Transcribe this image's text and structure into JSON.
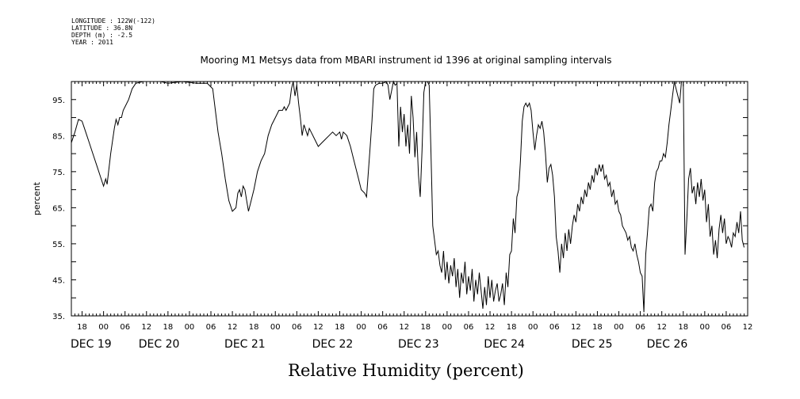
{
  "header": {
    "meta_lines": [
      "LONGITUDE : 122W(-122)",
      "LATITUDE : 36.8N",
      "DEPTH (m) : -2.5",
      "YEAR : 2011"
    ]
  },
  "chart_data": {
    "type": "line",
    "title": "Mooring M1 Metsys data from MBARI instrument id 1396 at original sampling intervals",
    "xlabel": "Relative Humidity (percent)",
    "ylabel": "percent",
    "ylim": [
      35,
      100
    ],
    "yticks": [
      35,
      45,
      55,
      65,
      75,
      85,
      95
    ],
    "yticklabels": [
      "35.",
      "45.",
      "55.",
      "65.",
      "75.",
      "85.",
      "95."
    ],
    "xlim": [
      15,
      204
    ],
    "x_unit": "hours since Dec 19 00:00",
    "xtick_hour_labels": [
      {
        "x": 18,
        "label": "18"
      },
      {
        "x": 24,
        "label": "00"
      },
      {
        "x": 30,
        "label": "06"
      },
      {
        "x": 36,
        "label": "12"
      },
      {
        "x": 42,
        "label": "18"
      },
      {
        "x": 48,
        "label": "00"
      },
      {
        "x": 54,
        "label": "06"
      },
      {
        "x": 60,
        "label": "12"
      },
      {
        "x": 66,
        "label": "18"
      },
      {
        "x": 72,
        "label": "00"
      },
      {
        "x": 78,
        "label": "06"
      },
      {
        "x": 84,
        "label": "12"
      },
      {
        "x": 90,
        "label": "18"
      },
      {
        "x": 96,
        "label": "00"
      },
      {
        "x": 102,
        "label": "06"
      },
      {
        "x": 108,
        "label": "12"
      },
      {
        "x": 114,
        "label": "18"
      },
      {
        "x": 120,
        "label": "00"
      },
      {
        "x": 126,
        "label": "06"
      },
      {
        "x": 132,
        "label": "12"
      },
      {
        "x": 138,
        "label": "18"
      },
      {
        "x": 144,
        "label": "00"
      },
      {
        "x": 150,
        "label": "06"
      },
      {
        "x": 156,
        "label": "12"
      },
      {
        "x": 162,
        "label": "18"
      },
      {
        "x": 168,
        "label": "00"
      },
      {
        "x": 174,
        "label": "06"
      },
      {
        "x": 180,
        "label": "12"
      },
      {
        "x": 186,
        "label": "18"
      },
      {
        "x": 192,
        "label": "00"
      },
      {
        "x": 198,
        "label": "06"
      },
      {
        "x": 204,
        "label": "12"
      }
    ],
    "day_labels": [
      {
        "x": 20.5,
        "label": "DEC 19"
      },
      {
        "x": 39.5,
        "label": "DEC 20"
      },
      {
        "x": 63.5,
        "label": "DEC 21"
      },
      {
        "x": 88,
        "label": "DEC 22"
      },
      {
        "x": 112,
        "label": "DEC 23"
      },
      {
        "x": 136,
        "label": "DEC 24"
      },
      {
        "x": 160.5,
        "label": "DEC 25"
      },
      {
        "x": 181.5,
        "label": "DEC 26"
      }
    ],
    "grid": false,
    "series": [
      {
        "color": "#000000",
        "points": [
          [
            15,
            83
          ],
          [
            16,
            86
          ],
          [
            17,
            89.5
          ],
          [
            18,
            89
          ],
          [
            19,
            86
          ],
          [
            20,
            83
          ],
          [
            21,
            80
          ],
          [
            22,
            77
          ],
          [
            23,
            74
          ],
          [
            24,
            71
          ],
          [
            24.6,
            73
          ],
          [
            25,
            71.5
          ],
          [
            26,
            80
          ],
          [
            27,
            87
          ],
          [
            27.5,
            89.5
          ],
          [
            28,
            88
          ],
          [
            28.5,
            90
          ],
          [
            29,
            90
          ],
          [
            29.5,
            92
          ],
          [
            30,
            93
          ],
          [
            31,
            95
          ],
          [
            32,
            98
          ],
          [
            33,
            99.5
          ],
          [
            35,
            100
          ],
          [
            40,
            100
          ],
          [
            42,
            99.5
          ],
          [
            46,
            100
          ],
          [
            50,
            99.5
          ],
          [
            53,
            99.5
          ],
          [
            54.5,
            98
          ],
          [
            55,
            94
          ],
          [
            56,
            86
          ],
          [
            57,
            80
          ],
          [
            58,
            73
          ],
          [
            59,
            67
          ],
          [
            60,
            64
          ],
          [
            61,
            65
          ],
          [
            61.5,
            69
          ],
          [
            62,
            70
          ],
          [
            62.5,
            68
          ],
          [
            63,
            71
          ],
          [
            63.5,
            70
          ],
          [
            64,
            67
          ],
          [
            64.5,
            64
          ],
          [
            65,
            66
          ],
          [
            66,
            70
          ],
          [
            67,
            75
          ],
          [
            68,
            78
          ],
          [
            69,
            80
          ],
          [
            70,
            85
          ],
          [
            71,
            88
          ],
          [
            72,
            90
          ],
          [
            73,
            92
          ],
          [
            74,
            92
          ],
          [
            74.5,
            93
          ],
          [
            75,
            92
          ],
          [
            76,
            94
          ],
          [
            76.5,
            98
          ],
          [
            77,
            100
          ],
          [
            77.5,
            96
          ],
          [
            78,
            99
          ],
          [
            78.5,
            94
          ],
          [
            79,
            90
          ],
          [
            79.5,
            85
          ],
          [
            80,
            88
          ],
          [
            81,
            85
          ],
          [
            81.5,
            87
          ],
          [
            82,
            86
          ],
          [
            83,
            84
          ],
          [
            84,
            82
          ],
          [
            85,
            83
          ],
          [
            86,
            84
          ],
          [
            87,
            85
          ],
          [
            88,
            86
          ],
          [
            89,
            85
          ],
          [
            90,
            86
          ],
          [
            90.5,
            84
          ],
          [
            91,
            86
          ],
          [
            92,
            85
          ],
          [
            93,
            82
          ],
          [
            94,
            78
          ],
          [
            95,
            74
          ],
          [
            96,
            70
          ],
          [
            97,
            69
          ],
          [
            97.5,
            68
          ],
          [
            98,
            75
          ],
          [
            98.5,
            82
          ],
          [
            99,
            89
          ],
          [
            99.5,
            98
          ],
          [
            100,
            99
          ],
          [
            101,
            99.5
          ],
          [
            102,
            99.5
          ],
          [
            103,
            100
          ],
          [
            103.5,
            99
          ],
          [
            104,
            95
          ],
          [
            105,
            100
          ],
          [
            105.5,
            99
          ],
          [
            106,
            99.5
          ],
          [
            106.5,
            82
          ],
          [
            107,
            93
          ],
          [
            107.5,
            86
          ],
          [
            108,
            91
          ],
          [
            108.5,
            82
          ],
          [
            109,
            88
          ],
          [
            109.5,
            80
          ],
          [
            110,
            96
          ],
          [
            110.5,
            90
          ],
          [
            111,
            79
          ],
          [
            111.5,
            86
          ],
          [
            112,
            74
          ],
          [
            112.5,
            68
          ],
          [
            113,
            81
          ],
          [
            113.5,
            97
          ],
          [
            114,
            100
          ],
          [
            114.5,
            100
          ],
          [
            115,
            99
          ],
          [
            115.5,
            80
          ],
          [
            116,
            60
          ],
          [
            116.5,
            56
          ],
          [
            117,
            52
          ],
          [
            117.5,
            53
          ],
          [
            118,
            49
          ],
          [
            118.5,
            47
          ],
          [
            119,
            53
          ],
          [
            119.5,
            45
          ],
          [
            120,
            50
          ],
          [
            120.5,
            44
          ],
          [
            121,
            49
          ],
          [
            121.5,
            46
          ],
          [
            122,
            51
          ],
          [
            122.5,
            43
          ],
          [
            123,
            48
          ],
          [
            123.5,
            40
          ],
          [
            124,
            47
          ],
          [
            124.5,
            44
          ],
          [
            125,
            50
          ],
          [
            125.5,
            41
          ],
          [
            126,
            46
          ],
          [
            126.5,
            42
          ],
          [
            127,
            48
          ],
          [
            127.5,
            39
          ],
          [
            128,
            45
          ],
          [
            128.5,
            41
          ],
          [
            129,
            47
          ],
          [
            129.5,
            42
          ],
          [
            130,
            37
          ],
          [
            130.5,
            43
          ],
          [
            131,
            38
          ],
          [
            131.5,
            46
          ],
          [
            132,
            40
          ],
          [
            132.5,
            45
          ],
          [
            133,
            39
          ],
          [
            133.5,
            42
          ],
          [
            134,
            44
          ],
          [
            134.5,
            39
          ],
          [
            135,
            41
          ],
          [
            135.5,
            44
          ],
          [
            136,
            38
          ],
          [
            136.5,
            47
          ],
          [
            137,
            43
          ],
          [
            137.5,
            52
          ],
          [
            138,
            53
          ],
          [
            138.5,
            62
          ],
          [
            139,
            58
          ],
          [
            139.5,
            68
          ],
          [
            140,
            70
          ],
          [
            140.5,
            78
          ],
          [
            141,
            89
          ],
          [
            141.5,
            93
          ],
          [
            142,
            94
          ],
          [
            142.5,
            93
          ],
          [
            143,
            94
          ],
          [
            143.5,
            92
          ],
          [
            144,
            86
          ],
          [
            144.5,
            81
          ],
          [
            145,
            85
          ],
          [
            145.5,
            88
          ],
          [
            146,
            87
          ],
          [
            146.5,
            89
          ],
          [
            147,
            86
          ],
          [
            147.5,
            80
          ],
          [
            148,
            72
          ],
          [
            148.5,
            76
          ],
          [
            149,
            77
          ],
          [
            149.5,
            74
          ],
          [
            150,
            68
          ],
          [
            150.5,
            57
          ],
          [
            151,
            53
          ],
          [
            151.5,
            47
          ],
          [
            152,
            55
          ],
          [
            152.5,
            51
          ],
          [
            153,
            58
          ],
          [
            153.5,
            53
          ],
          [
            154,
            59
          ],
          [
            154.5,
            55
          ],
          [
            155,
            60
          ],
          [
            155.5,
            63
          ],
          [
            156,
            61
          ],
          [
            156.5,
            66
          ],
          [
            157,
            64
          ],
          [
            157.5,
            68
          ],
          [
            158,
            66
          ],
          [
            158.5,
            70
          ],
          [
            159,
            68
          ],
          [
            159.5,
            72
          ],
          [
            160,
            70
          ],
          [
            160.5,
            74
          ],
          [
            161,
            72
          ],
          [
            161.5,
            76
          ],
          [
            162,
            74
          ],
          [
            162.5,
            77
          ],
          [
            163,
            75
          ],
          [
            163.5,
            77
          ],
          [
            164,
            73
          ],
          [
            164.5,
            74
          ],
          [
            165,
            71
          ],
          [
            165.5,
            72
          ],
          [
            166,
            68
          ],
          [
            166.5,
            70
          ],
          [
            167,
            66
          ],
          [
            167.5,
            67
          ],
          [
            168,
            64
          ],
          [
            168.5,
            63
          ],
          [
            169,
            60
          ],
          [
            169.5,
            59
          ],
          [
            170,
            58
          ],
          [
            170.5,
            56
          ],
          [
            171,
            57
          ],
          [
            171.5,
            54
          ],
          [
            172,
            53
          ],
          [
            172.5,
            55
          ],
          [
            173,
            52
          ],
          [
            173.5,
            50
          ],
          [
            174,
            47
          ],
          [
            174.5,
            46
          ],
          [
            175,
            36
          ],
          [
            175.5,
            52
          ],
          [
            176,
            58
          ],
          [
            176.5,
            65
          ],
          [
            177,
            66
          ],
          [
            177.5,
            64
          ],
          [
            178,
            72
          ],
          [
            178.5,
            75
          ],
          [
            179,
            76
          ],
          [
            179.5,
            78
          ],
          [
            180,
            78
          ],
          [
            180.5,
            80
          ],
          [
            181,
            79
          ],
          [
            181.5,
            83
          ],
          [
            182,
            88
          ],
          [
            182.5,
            92
          ],
          [
            183,
            96
          ],
          [
            183.5,
            100
          ],
          [
            184,
            98
          ],
          [
            184.5,
            96
          ],
          [
            185,
            94
          ],
          [
            185.5,
            100
          ],
          [
            186,
            100
          ],
          [
            186.5,
            52
          ],
          [
            187,
            62
          ],
          [
            187.5,
            73
          ],
          [
            188,
            76
          ],
          [
            188.5,
            69
          ],
          [
            189,
            71
          ],
          [
            189.5,
            66
          ],
          [
            190,
            72
          ],
          [
            190.5,
            68
          ],
          [
            191,
            73
          ],
          [
            191.5,
            67
          ],
          [
            192,
            70
          ],
          [
            192.5,
            61
          ],
          [
            193,
            66
          ],
          [
            193.5,
            57
          ],
          [
            194,
            60
          ],
          [
            194.5,
            52
          ],
          [
            195,
            56
          ],
          [
            195.5,
            51
          ],
          [
            196,
            59
          ],
          [
            196.5,
            63
          ],
          [
            197,
            58
          ],
          [
            197.5,
            62
          ],
          [
            198,
            55
          ],
          [
            198.5,
            57
          ],
          [
            199,
            56
          ],
          [
            199.5,
            54
          ],
          [
            200,
            58
          ],
          [
            200.5,
            57
          ],
          [
            201,
            61
          ],
          [
            201.5,
            58
          ],
          [
            202,
            64
          ],
          [
            202.5,
            56
          ],
          [
            203,
            54
          ]
        ]
      }
    ]
  }
}
